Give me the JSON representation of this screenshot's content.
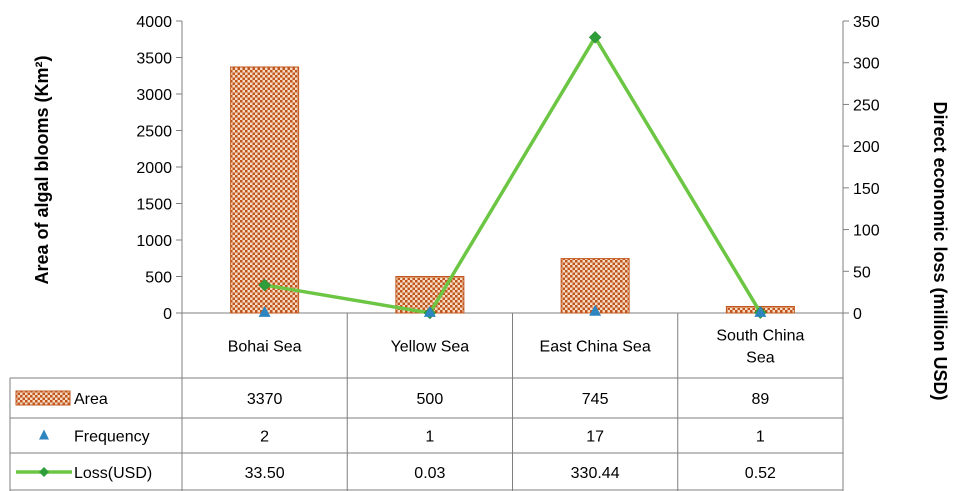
{
  "chart_data": {
    "type": "bar",
    "categories": [
      "Bohai Sea",
      "Yellow Sea",
      "East China Sea",
      "South China Sea"
    ],
    "category_lines": [
      [
        "Bohai Sea"
      ],
      [
        "Yellow Sea"
      ],
      [
        "East China Sea"
      ],
      [
        "South China",
        "Sea"
      ]
    ],
    "ylabel": "Area of algal blooms (Km²)",
    "y2label": "Direct economic loss (million USD)",
    "ylim": [
      0,
      4000
    ],
    "y2lim": [
      0,
      350
    ],
    "yticks": [
      0,
      500,
      1000,
      1500,
      2000,
      2500,
      3000,
      3500,
      4000
    ],
    "y2ticks": [
      0,
      50,
      100,
      150,
      200,
      250,
      300,
      350
    ],
    "grid": false,
    "series": [
      {
        "name": "Area",
        "kind": "bar",
        "axis": "left",
        "values": [
          3370,
          500,
          745,
          89
        ],
        "labels": [
          "3370",
          "500",
          "745",
          "89"
        ],
        "color": "#c0561c"
      },
      {
        "name": "Frequency",
        "kind": "marker",
        "axis": "left",
        "values": [
          2,
          1,
          17,
          1
        ],
        "labels": [
          "2",
          "1",
          "17",
          "1"
        ],
        "color": "#2e86c1"
      },
      {
        "name": "Loss(USD)",
        "kind": "line",
        "axis": "right",
        "values": [
          33.5,
          0.03,
          330.44,
          0.52
        ],
        "labels": [
          "33.50",
          "0.03",
          "330.44",
          "0.52"
        ],
        "color": "#6cc644",
        "marker_color": "#2e9e3a"
      }
    ],
    "legend_placement": "data-table"
  },
  "colors": {
    "axis": "#7f7f7f",
    "bar_fill": "#c0561c",
    "bar_bg": "#f3d9c4"
  }
}
